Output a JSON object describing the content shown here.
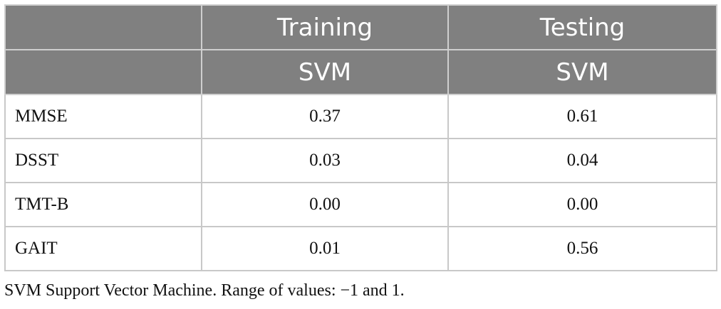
{
  "header": {
    "row1": [
      "",
      "Training",
      "Testing"
    ],
    "row2": [
      "",
      "SVM",
      "SVM"
    ]
  },
  "rows": [
    {
      "label": "MMSE",
      "training": "0.37",
      "testing": "0.61"
    },
    {
      "label": "DSST",
      "training": "0.03",
      "testing": "0.04"
    },
    {
      "label": "TMT-B",
      "training": "0.00",
      "testing": "0.00"
    },
    {
      "label": "GAIT",
      "training": "0.01",
      "testing": "0.56"
    }
  ],
  "footnote": "SVM Support Vector Machine. Range of values: −1 and 1.",
  "colors": {
    "header_bg": "#808080",
    "header_text": "#ffffff",
    "border": "#c8c8c8"
  }
}
